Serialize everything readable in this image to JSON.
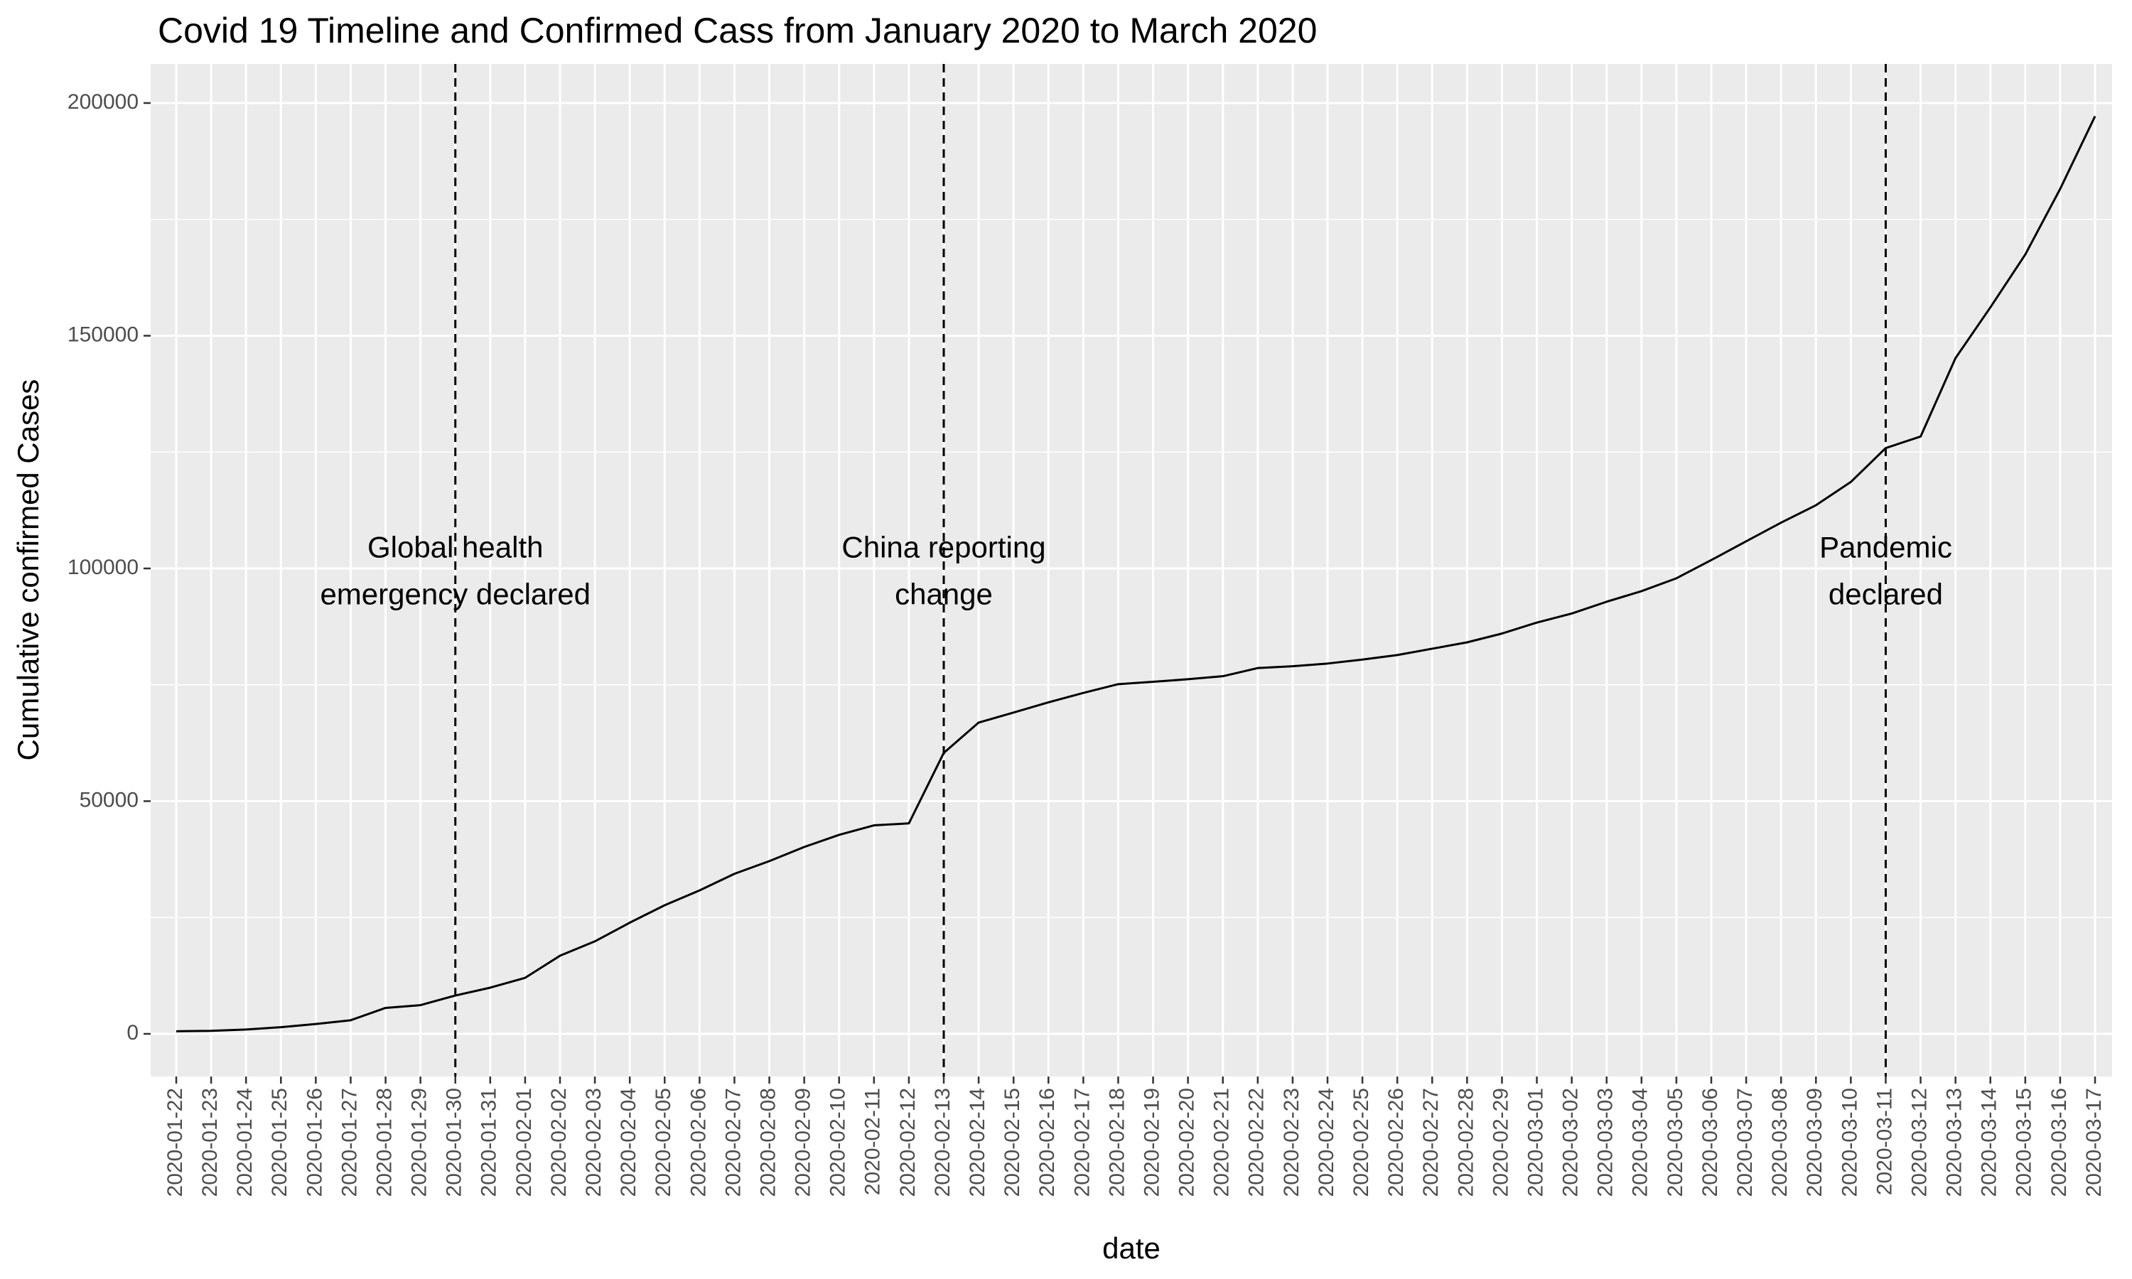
{
  "chart_data": {
    "type": "line",
    "title": "Covid 19 Timeline and Confirmed Cass from January 2020 to March 2020",
    "xlabel": "date",
    "ylabel": "Cumulative confirmed Cases",
    "ylim": [
      -12000,
      210000
    ],
    "yticks": [
      0,
      50000,
      100000,
      150000,
      200000
    ],
    "grid": true,
    "panel_background": "#ebebeb",
    "grid_color": "#ffffff",
    "line_color": "#000000",
    "categories": [
      "2020-01-22",
      "2020-01-23",
      "2020-01-24",
      "2020-01-25",
      "2020-01-26",
      "2020-01-27",
      "2020-01-28",
      "2020-01-29",
      "2020-01-30",
      "2020-01-31",
      "2020-02-01",
      "2020-02-02",
      "2020-02-03",
      "2020-02-04",
      "2020-02-05",
      "2020-02-06",
      "2020-02-07",
      "2020-02-08",
      "2020-02-09",
      "2020-02-10",
      "2020-02-11",
      "2020-02-12",
      "2020-02-13",
      "2020-02-14",
      "2020-02-15",
      "2020-02-16",
      "2020-02-17",
      "2020-02-18",
      "2020-02-19",
      "2020-02-20",
      "2020-02-21",
      "2020-02-22",
      "2020-02-23",
      "2020-02-24",
      "2020-02-25",
      "2020-02-26",
      "2020-02-27",
      "2020-02-28",
      "2020-02-29",
      "2020-03-01",
      "2020-03-02",
      "2020-03-03",
      "2020-03-04",
      "2020-03-05",
      "2020-03-06",
      "2020-03-07",
      "2020-03-08",
      "2020-03-09",
      "2020-03-10",
      "2020-03-11",
      "2020-03-12",
      "2020-03-13",
      "2020-03-14",
      "2020-03-15",
      "2020-03-16",
      "2020-03-17"
    ],
    "series": [
      {
        "values": [
          555,
          654,
          941,
          1434,
          2118,
          2927,
          5578,
          6166,
          8235,
          9927,
          12038,
          16787,
          19881,
          23892,
          27636,
          30818,
          34392,
          37121,
          40151,
          42763,
          44803,
          45222,
          60370,
          66887,
          69032,
          71226,
          73260,
          75138,
          75641,
          76199,
          76843,
          78599,
          78985,
          79570,
          80415,
          81397,
          82756,
          84124,
          86013,
          88371,
          90309,
          92844,
          95124,
          97886,
          101800,
          105836,
          109835,
          113582,
          118582,
          125865,
          128343,
          145193,
          156097,
          167449,
          181546,
          197168
        ]
      }
    ],
    "annotations": [
      {
        "x": "2020-01-30",
        "lines": [
          "Global health",
          "emergency declared"
        ],
        "y": 99000
      },
      {
        "x": "2020-02-13",
        "lines": [
          "China reporting",
          "change"
        ],
        "y": 99000
      },
      {
        "x": "2020-03-11",
        "lines": [
          "Pandemic",
          "declared"
        ],
        "y": 99000
      }
    ]
  }
}
